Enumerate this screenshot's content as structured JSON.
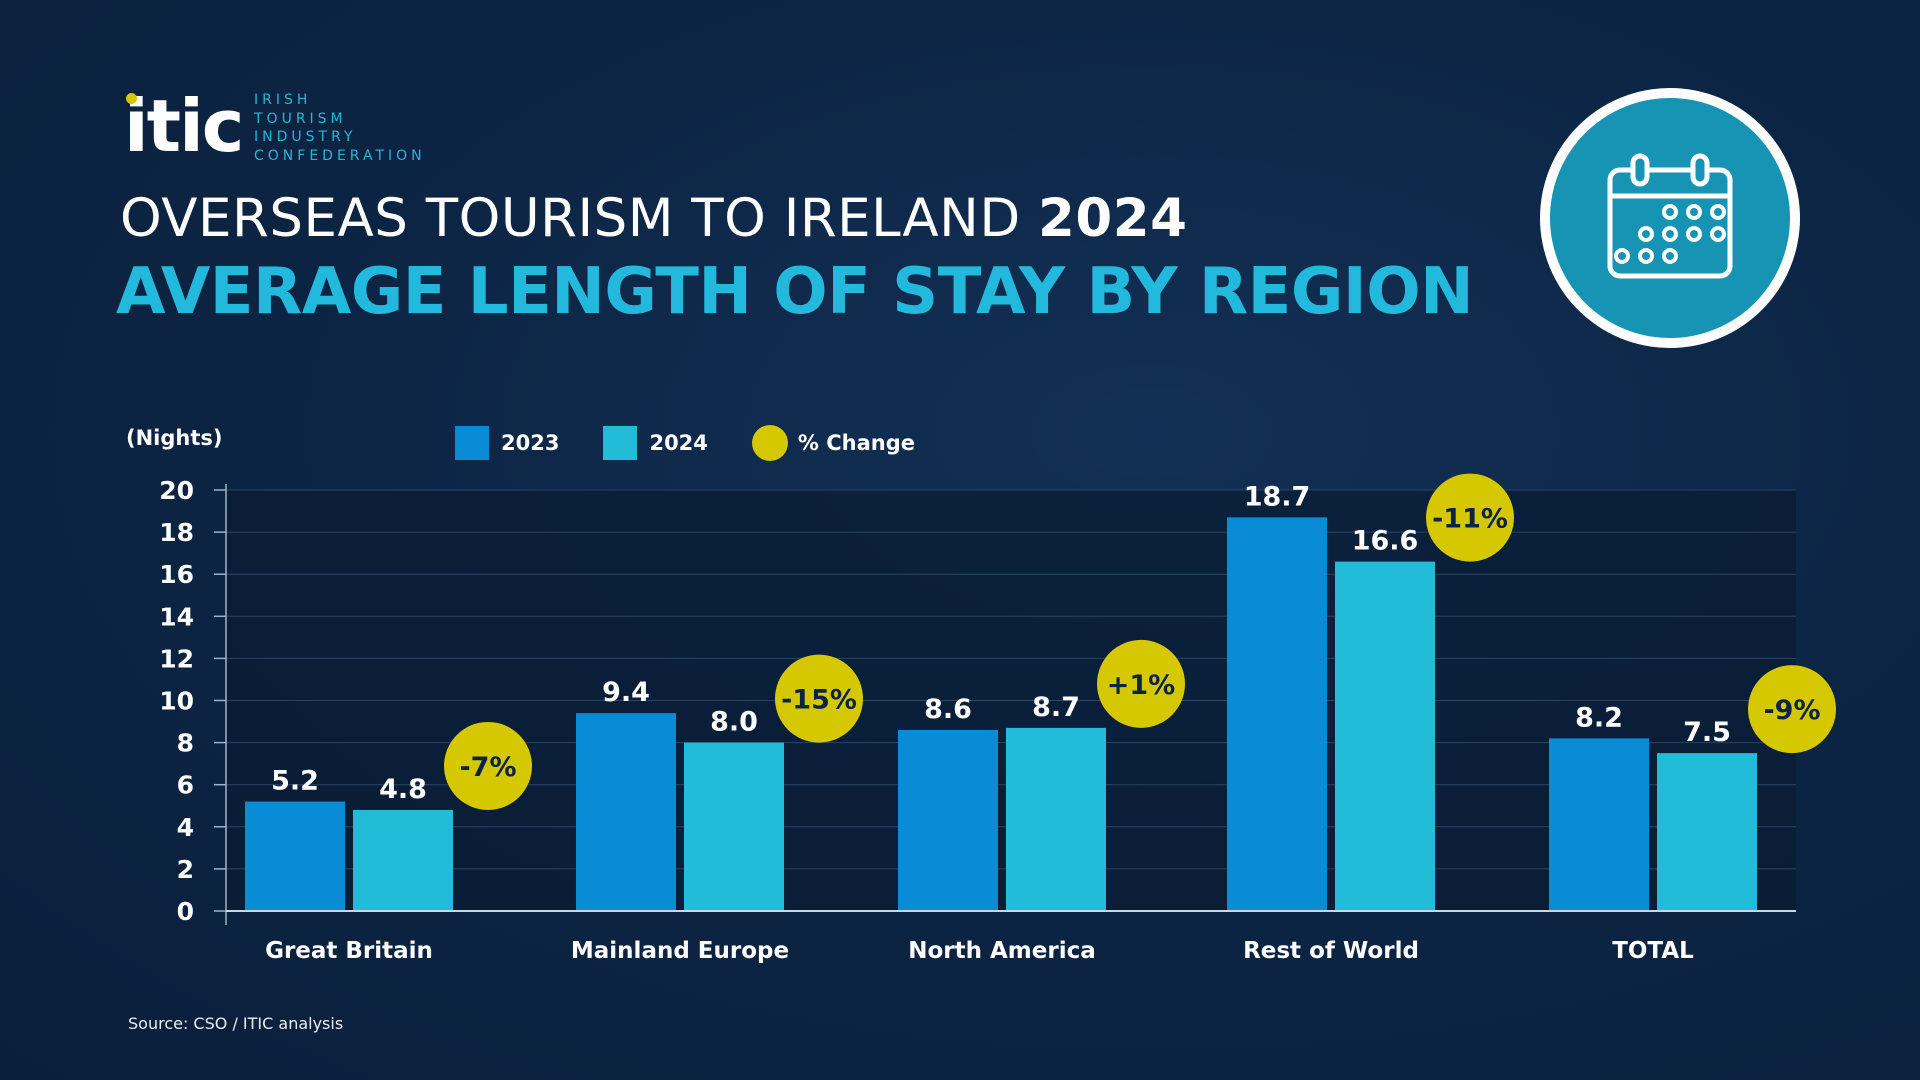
{
  "logo": {
    "mark": "itic",
    "text_lines": [
      "IRISH",
      "TOURISM",
      "INDUSTRY",
      "CONFEDERATION"
    ]
  },
  "header": {
    "title_prefix": "OVERSEAS TOURISM TO IRELAND ",
    "title_year": "2024",
    "subtitle": "AVERAGE LENGTH OF STAY BY REGION"
  },
  "badge": {
    "icon": "calendar-icon"
  },
  "source": "Source: CSO / ITIC analysis",
  "colors": {
    "series_2023": "#0a8bd6",
    "series_2024": "#22bcd9",
    "change_badge": "#d6c800",
    "change_text": "#0c2443"
  },
  "chart_data": {
    "type": "bar",
    "ylabel": "(Nights)",
    "ylim": [
      0,
      20
    ],
    "yticks": [
      "0",
      "2",
      "4",
      "6",
      "8",
      "10",
      "12",
      "14",
      "16",
      "18",
      "20"
    ],
    "grid": true,
    "legend_position": "top",
    "categories": [
      "Great Britain",
      "Mainland Europe",
      "North America",
      "Rest of World",
      "TOTAL"
    ],
    "series": [
      {
        "name": "2023",
        "values": [
          5.2,
          9.4,
          8.6,
          18.7,
          8.2
        ],
        "labels": [
          "5.2",
          "9.4",
          "8.6",
          "18.7",
          "8.2"
        ]
      },
      {
        "name": "2024",
        "values": [
          4.8,
          8.0,
          8.7,
          16.6,
          7.5
        ],
        "labels": [
          "4.8",
          "8.0",
          "8.7",
          "16.6",
          "7.5"
        ]
      }
    ],
    "change_legend": "% Change",
    "change": [
      "-7%",
      "-15%",
      "+1%",
      "-11%",
      "-9%"
    ]
  }
}
